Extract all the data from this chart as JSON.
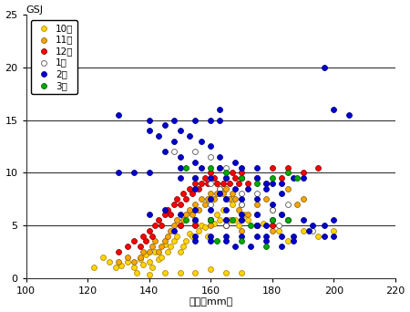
{
  "title": "GSJ",
  "xlabel": "全長（mm）",
  "xlim": [
    100,
    220
  ],
  "ylim": [
    0,
    25
  ],
  "xticks": [
    100,
    120,
    140,
    160,
    180,
    200,
    220
  ],
  "yticks": [
    0,
    5,
    10,
    15,
    20,
    25
  ],
  "hlines": [
    5,
    10,
    15,
    20
  ],
  "legend_labels": [
    "10月",
    "11月",
    "12月",
    "1月",
    "2月",
    "3月"
  ],
  "series": {
    "10月": {
      "color": "#FFD700",
      "edgecolor": "#B8860B",
      "points": [
        [
          122,
          1.0
        ],
        [
          125,
          2.0
        ],
        [
          127,
          1.5
        ],
        [
          129,
          1.0
        ],
        [
          131,
          1.2
        ],
        [
          133,
          1.5
        ],
        [
          135,
          1.0
        ],
        [
          136,
          0.5
        ],
        [
          137,
          1.8
        ],
        [
          138,
          1.3
        ],
        [
          139,
          2.2
        ],
        [
          140,
          1.5
        ],
        [
          141,
          1.0
        ],
        [
          142,
          2.5
        ],
        [
          143,
          1.8
        ],
        [
          144,
          2.0
        ],
        [
          145,
          3.2
        ],
        [
          146,
          2.5
        ],
        [
          147,
          3.0
        ],
        [
          148,
          3.5
        ],
        [
          149,
          4.0
        ],
        [
          150,
          2.5
        ],
        [
          151,
          3.0
        ],
        [
          152,
          3.5
        ],
        [
          153,
          4.2
        ],
        [
          154,
          4.0
        ],
        [
          155,
          5.2
        ],
        [
          156,
          4.5
        ],
        [
          157,
          5.0
        ],
        [
          158,
          4.8
        ],
        [
          159,
          4.0
        ],
        [
          160,
          5.5
        ],
        [
          161,
          5.2
        ],
        [
          162,
          6.0
        ],
        [
          163,
          5.5
        ],
        [
          164,
          6.5
        ],
        [
          165,
          5.0
        ],
        [
          166,
          5.5
        ],
        [
          167,
          7.0
        ],
        [
          168,
          5.5
        ],
        [
          169,
          5.0
        ],
        [
          170,
          5.5
        ],
        [
          171,
          6.0
        ],
        [
          172,
          5.5
        ],
        [
          175,
          5.0
        ],
        [
          177,
          5.2
        ],
        [
          180,
          5.0
        ],
        [
          182,
          4.5
        ],
        [
          185,
          3.5
        ],
        [
          190,
          4.5
        ],
        [
          195,
          4.0
        ],
        [
          200,
          4.5
        ],
        [
          140,
          0.3
        ],
        [
          145,
          0.5
        ],
        [
          150,
          0.5
        ],
        [
          155,
          0.5
        ],
        [
          160,
          0.8
        ],
        [
          165,
          0.5
        ],
        [
          170,
          0.5
        ]
      ]
    },
    "11月": {
      "color": "#FFA500",
      "edgecolor": "#8B6914",
      "points": [
        [
          130,
          1.5
        ],
        [
          133,
          2.0
        ],
        [
          135,
          1.5
        ],
        [
          137,
          2.0
        ],
        [
          138,
          2.5
        ],
        [
          140,
          2.5
        ],
        [
          141,
          3.0
        ],
        [
          142,
          3.5
        ],
        [
          143,
          2.5
        ],
        [
          144,
          3.0
        ],
        [
          145,
          3.5
        ],
        [
          146,
          4.0
        ],
        [
          147,
          4.5
        ],
        [
          148,
          5.0
        ],
        [
          149,
          5.5
        ],
        [
          150,
          5.0
        ],
        [
          151,
          5.5
        ],
        [
          152,
          6.0
        ],
        [
          153,
          6.5
        ],
        [
          154,
          6.0
        ],
        [
          155,
          7.0
        ],
        [
          156,
          6.5
        ],
        [
          157,
          7.5
        ],
        [
          158,
          7.0
        ],
        [
          159,
          7.5
        ],
        [
          160,
          8.0
        ],
        [
          161,
          7.5
        ],
        [
          162,
          8.0
        ],
        [
          163,
          8.5
        ],
        [
          164,
          8.0
        ],
        [
          165,
          8.5
        ],
        [
          166,
          7.5
        ],
        [
          167,
          8.0
        ],
        [
          168,
          7.5
        ],
        [
          169,
          6.5
        ],
        [
          170,
          7.0
        ],
        [
          172,
          6.0
        ],
        [
          175,
          7.0
        ],
        [
          178,
          7.5
        ],
        [
          180,
          6.5
        ],
        [
          183,
          6.0
        ],
        [
          185,
          8.5
        ],
        [
          188,
          7.0
        ],
        [
          190,
          7.5
        ],
        [
          155,
          5.5
        ],
        [
          160,
          5.0
        ],
        [
          165,
          5.5
        ],
        [
          170,
          4.5
        ],
        [
          175,
          5.0
        ],
        [
          180,
          4.5
        ]
      ]
    },
    "12月": {
      "color": "#FF0000",
      "edgecolor": "#8B0000",
      "points": [
        [
          130,
          2.5
        ],
        [
          133,
          3.0
        ],
        [
          135,
          3.5
        ],
        [
          137,
          3.0
        ],
        [
          138,
          4.0
        ],
        [
          139,
          3.5
        ],
        [
          140,
          4.5
        ],
        [
          141,
          4.0
        ],
        [
          142,
          5.0
        ],
        [
          143,
          5.5
        ],
        [
          144,
          5.0
        ],
        [
          145,
          6.0
        ],
        [
          146,
          6.5
        ],
        [
          147,
          6.0
        ],
        [
          148,
          7.0
        ],
        [
          149,
          7.5
        ],
        [
          150,
          7.0
        ],
        [
          151,
          8.0
        ],
        [
          152,
          7.5
        ],
        [
          153,
          8.5
        ],
        [
          154,
          8.0
        ],
        [
          155,
          9.0
        ],
        [
          156,
          8.5
        ],
        [
          157,
          9.0
        ],
        [
          158,
          9.5
        ],
        [
          159,
          9.0
        ],
        [
          160,
          10.0
        ],
        [
          161,
          9.5
        ],
        [
          162,
          9.0
        ],
        [
          163,
          10.5
        ],
        [
          164,
          9.0
        ],
        [
          165,
          9.5
        ],
        [
          166,
          9.0
        ],
        [
          167,
          10.0
        ],
        [
          168,
          9.5
        ],
        [
          169,
          9.0
        ],
        [
          170,
          10.0
        ],
        [
          172,
          9.0
        ],
        [
          175,
          9.5
        ],
        [
          178,
          9.0
        ],
        [
          180,
          10.5
        ],
        [
          183,
          9.5
        ],
        [
          185,
          10.5
        ],
        [
          190,
          10.0
        ],
        [
          195,
          10.5
        ],
        [
          165,
          5.0
        ],
        [
          160,
          5.5
        ],
        [
          155,
          5.0
        ],
        [
          150,
          5.0
        ],
        [
          175,
          5.0
        ],
        [
          180,
          5.0
        ]
      ]
    },
    "1月": {
      "color": "#FFFFFF",
      "edgecolor": "#555555",
      "points": [
        [
          148,
          12.0
        ],
        [
          155,
          12.0
        ],
        [
          160,
          11.5
        ],
        [
          165,
          10.5
        ],
        [
          155,
          9.5
        ],
        [
          160,
          9.0
        ],
        [
          163,
          8.5
        ],
        [
          170,
          8.0
        ],
        [
          175,
          8.0
        ],
        [
          160,
          7.0
        ],
        [
          165,
          7.5
        ],
        [
          170,
          7.0
        ],
        [
          175,
          6.0
        ],
        [
          180,
          6.5
        ],
        [
          185,
          7.0
        ],
        [
          155,
          5.5
        ],
        [
          160,
          5.5
        ],
        [
          165,
          5.0
        ],
        [
          170,
          5.5
        ],
        [
          175,
          5.0
        ],
        [
          182,
          5.0
        ],
        [
          193,
          4.5
        ]
      ]
    },
    "2月": {
      "color": "#0000CD",
      "edgecolor": "#00008B",
      "points": [
        [
          140,
          15.0
        ],
        [
          148,
          15.0
        ],
        [
          155,
          15.0
        ],
        [
          160,
          15.0
        ],
        [
          163,
          15.0
        ],
        [
          140,
          14.0
        ],
        [
          145,
          14.5
        ],
        [
          150,
          14.0
        ],
        [
          143,
          13.5
        ],
        [
          148,
          13.0
        ],
        [
          153,
          13.5
        ],
        [
          157,
          13.0
        ],
        [
          160,
          12.5
        ],
        [
          145,
          12.0
        ],
        [
          150,
          11.5
        ],
        [
          155,
          11.0
        ],
        [
          163,
          11.5
        ],
        [
          168,
          11.0
        ],
        [
          150,
          10.5
        ],
        [
          157,
          10.5
        ],
        [
          163,
          10.5
        ],
        [
          170,
          10.5
        ],
        [
          175,
          10.5
        ],
        [
          130,
          10.0
        ],
        [
          135,
          10.0
        ],
        [
          140,
          10.0
        ],
        [
          150,
          9.5
        ],
        [
          155,
          9.5
        ],
        [
          160,
          9.5
        ],
        [
          165,
          9.5
        ],
        [
          170,
          9.5
        ],
        [
          175,
          9.5
        ],
        [
          178,
          9.0
        ],
        [
          180,
          9.0
        ],
        [
          183,
          9.0
        ],
        [
          187,
          9.5
        ],
        [
          190,
          9.5
        ],
        [
          155,
          8.5
        ],
        [
          163,
          8.0
        ],
        [
          168,
          8.5
        ],
        [
          172,
          8.5
        ],
        [
          178,
          8.5
        ],
        [
          183,
          8.0
        ],
        [
          160,
          7.5
        ],
        [
          165,
          7.5
        ],
        [
          170,
          7.5
        ],
        [
          175,
          7.5
        ],
        [
          180,
          7.0
        ],
        [
          155,
          6.5
        ],
        [
          160,
          6.5
        ],
        [
          165,
          6.5
        ],
        [
          170,
          6.0
        ],
        [
          175,
          6.0
        ],
        [
          183,
          6.0
        ],
        [
          140,
          6.0
        ],
        [
          145,
          6.5
        ],
        [
          150,
          6.0
        ],
        [
          155,
          5.5
        ],
        [
          160,
          5.5
        ],
        [
          165,
          5.5
        ],
        [
          170,
          5.5
        ],
        [
          175,
          5.0
        ],
        [
          178,
          5.0
        ],
        [
          180,
          5.5
        ],
        [
          185,
          5.5
        ],
        [
          190,
          5.5
        ],
        [
          193,
          5.0
        ],
        [
          197,
          5.0
        ],
        [
          200,
          5.5
        ],
        [
          148,
          4.5
        ],
        [
          155,
          4.0
        ],
        [
          160,
          4.0
        ],
        [
          165,
          4.0
        ],
        [
          170,
          4.0
        ],
        [
          175,
          4.0
        ],
        [
          178,
          4.0
        ],
        [
          183,
          4.0
        ],
        [
          187,
          4.0
        ],
        [
          192,
          4.5
        ],
        [
          197,
          4.0
        ],
        [
          200,
          4.0
        ],
        [
          155,
          3.5
        ],
        [
          160,
          3.5
        ],
        [
          165,
          3.5
        ],
        [
          168,
          3.0
        ],
        [
          173,
          3.0
        ],
        [
          178,
          3.5
        ],
        [
          183,
          3.0
        ],
        [
          187,
          3.5
        ],
        [
          197,
          20.0
        ],
        [
          200,
          16.0
        ],
        [
          205,
          15.5
        ],
        [
          130,
          15.5
        ],
        [
          163,
          16.0
        ]
      ]
    },
    "3月": {
      "color": "#00AA00",
      "edgecolor": "#006400",
      "points": [
        [
          152,
          10.5
        ],
        [
          160,
          10.5
        ],
        [
          165,
          10.0
        ],
        [
          170,
          9.5
        ],
        [
          175,
          9.0
        ],
        [
          180,
          9.5
        ],
        [
          185,
          10.0
        ],
        [
          188,
          9.5
        ],
        [
          152,
          5.5
        ],
        [
          160,
          5.5
        ],
        [
          167,
          5.5
        ],
        [
          173,
          5.0
        ],
        [
          180,
          5.5
        ],
        [
          185,
          5.5
        ],
        [
          162,
          3.5
        ],
        [
          170,
          3.5
        ],
        [
          178,
          3.0
        ]
      ]
    }
  }
}
